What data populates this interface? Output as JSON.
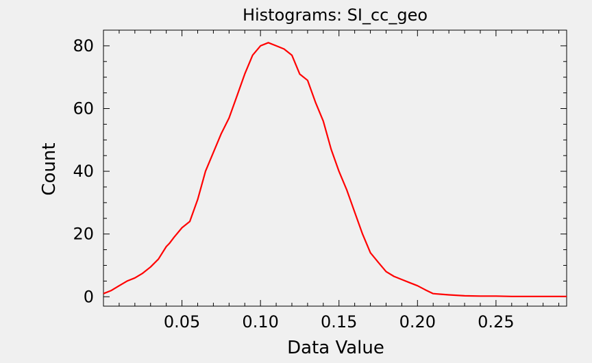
{
  "chart_data": {
    "type": "line",
    "title": "Histograms: SI_cc_geo",
    "xlabel": "Data Value",
    "ylabel": "Count",
    "xlim": [
      0.0,
      0.295
    ],
    "ylim": [
      -3,
      85
    ],
    "x_ticks": [
      0.05,
      0.1,
      0.15,
      0.2,
      0.25
    ],
    "x_tick_labels": [
      "0.05",
      "0.10",
      "0.15",
      "0.20",
      "0.25"
    ],
    "y_ticks": [
      0,
      20,
      40,
      60,
      80
    ],
    "y_tick_labels": [
      "0",
      "20",
      "40",
      "60",
      "80"
    ],
    "grid": false,
    "series": [
      {
        "color": "#ff0000",
        "x": [
          0.0,
          0.005,
          0.01,
          0.015,
          0.02,
          0.025,
          0.03,
          0.035,
          0.04,
          0.042,
          0.045,
          0.05,
          0.055,
          0.06,
          0.065,
          0.07,
          0.075,
          0.08,
          0.085,
          0.09,
          0.095,
          0.1,
          0.105,
          0.11,
          0.115,
          0.12,
          0.125,
          0.13,
          0.135,
          0.14,
          0.145,
          0.15,
          0.155,
          0.16,
          0.165,
          0.17,
          0.175,
          0.18,
          0.185,
          0.19,
          0.195,
          0.2,
          0.205,
          0.21,
          0.215,
          0.22,
          0.23,
          0.24,
          0.25,
          0.26,
          0.27,
          0.28,
          0.295
        ],
        "values": [
          1,
          2,
          3.5,
          5,
          6,
          7.5,
          9.5,
          12,
          16,
          17,
          19,
          22,
          24,
          31,
          40,
          46,
          52,
          57,
          64,
          71,
          77,
          80,
          81,
          80,
          79,
          77,
          71,
          69,
          62,
          56,
          47,
          40,
          34,
          27,
          20,
          14,
          11,
          8,
          6.5,
          5.5,
          4.5,
          3.5,
          2.2,
          1,
          0.8,
          0.6,
          0.3,
          0.2,
          0.2,
          0.1,
          0.1,
          0.1,
          0.1
        ]
      }
    ]
  }
}
